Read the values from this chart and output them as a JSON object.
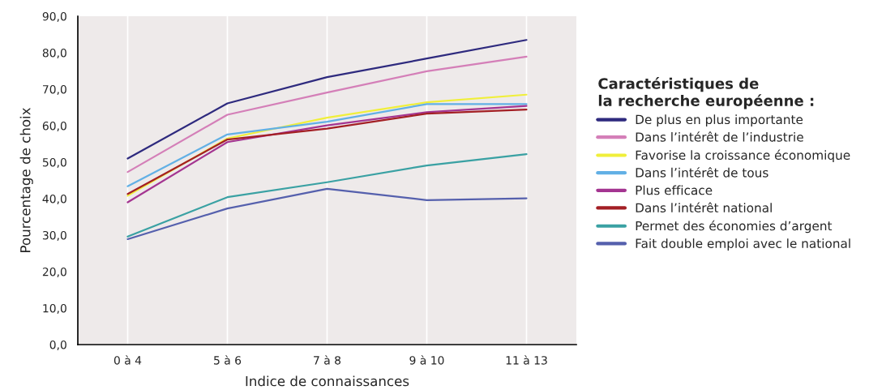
{
  "chart_data": {
    "type": "line",
    "xlabel": "Indice de connaissances",
    "ylabel": "Pourcentage de choix",
    "legend_title": "Caractéristiques de\nla recherche européenne :",
    "categories": [
      "0 à 4",
      "5 à 6",
      "7 à 8",
      "9 à 10",
      "11 à 13"
    ],
    "ylim": [
      0,
      90
    ],
    "yticks": [
      {
        "value": 0,
        "label": "0,0"
      },
      {
        "value": 10,
        "label": "10,0"
      },
      {
        "value": 20,
        "label": "20,0"
      },
      {
        "value": 30,
        "label": "30,0"
      },
      {
        "value": 40,
        "label": "40,0"
      },
      {
        "value": 50,
        "label": "50,0"
      },
      {
        "value": 60,
        "label": "60,0"
      },
      {
        "value": 70,
        "label": "70,0"
      },
      {
        "value": 80,
        "label": "80,0"
      },
      {
        "value": 90,
        "label": "90,0"
      }
    ],
    "grid": "x",
    "legend": "right",
    "marker": "none",
    "line_style": "solid",
    "series": [
      {
        "name": "De plus en plus importante",
        "color": "#2e2a7e",
        "values": [
          51.0,
          66.1,
          73.3,
          78.4,
          83.5
        ]
      },
      {
        "name": "Dans l’intérêt de l’industrie",
        "color": "#d47fb8",
        "values": [
          47.3,
          63.0,
          69.1,
          74.9,
          78.9
        ]
      },
      {
        "name": "Favorise la croissance économique",
        "color": "#f0ef3a",
        "values": [
          40.8,
          56.5,
          62.2,
          66.4,
          68.5
        ]
      },
      {
        "name": "Dans l’intérêt de tous",
        "color": "#62b0e5",
        "values": [
          43.4,
          57.6,
          61.1,
          65.9,
          65.9
        ]
      },
      {
        "name": "Plus efficace",
        "color": "#a43591",
        "values": [
          39.0,
          55.5,
          60.1,
          63.7,
          65.4
        ]
      },
      {
        "name": "Dans l’intérêt national",
        "color": "#a31f24",
        "values": [
          41.3,
          56.2,
          59.2,
          63.3,
          64.4
        ]
      },
      {
        "name": "Permet des économies d’argent",
        "color": "#3aa1a3",
        "values": [
          29.6,
          40.4,
          44.5,
          49.1,
          52.2
        ]
      },
      {
        "name": "Fait double emploi avec le national",
        "color": "#5560ad",
        "values": [
          28.9,
          37.3,
          42.7,
          39.6,
          40.1
        ]
      }
    ]
  }
}
